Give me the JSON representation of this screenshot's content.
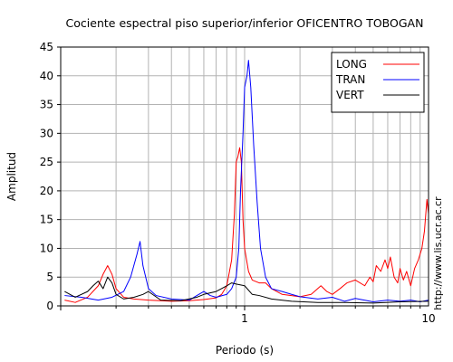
{
  "chart_data": {
    "type": "line",
    "title": "Cociente espectral piso superior/inferior OFICENTRO TOBOGAN",
    "xlabel": "Periodo (s)",
    "ylabel": "Amplitud",
    "x_scale": "log",
    "xlim": [
      0.1,
      10
    ],
    "ylim": [
      0,
      45
    ],
    "x_tick_labels": [
      {
        "value": 1,
        "label": "1"
      },
      {
        "value": 10,
        "label": "10"
      }
    ],
    "y_ticks": [
      0,
      5,
      10,
      15,
      20,
      25,
      30,
      35,
      40,
      45
    ],
    "grid": true,
    "legend_position": "top-right",
    "watermark": "http://www.lis.ucr.ac.cr",
    "series": [
      {
        "name": "LONG",
        "color": "#ff0000",
        "points": [
          [
            0.105,
            1.0
          ],
          [
            0.12,
            0.6
          ],
          [
            0.14,
            1.5
          ],
          [
            0.16,
            3.5
          ],
          [
            0.17,
            5.5
          ],
          [
            0.18,
            7.0
          ],
          [
            0.19,
            5.5
          ],
          [
            0.2,
            3.0
          ],
          [
            0.22,
            1.5
          ],
          [
            0.25,
            1.2
          ],
          [
            0.3,
            1.0
          ],
          [
            0.4,
            0.8
          ],
          [
            0.5,
            0.9
          ],
          [
            0.6,
            1.1
          ],
          [
            0.7,
            1.4
          ],
          [
            0.75,
            2.0
          ],
          [
            0.8,
            3.5
          ],
          [
            0.85,
            8.0
          ],
          [
            0.88,
            16.0
          ],
          [
            0.9,
            25.0
          ],
          [
            0.92,
            26.0
          ],
          [
            0.94,
            27.5
          ],
          [
            0.96,
            25.0
          ],
          [
            0.98,
            15.0
          ],
          [
            1.0,
            10.0
          ],
          [
            1.05,
            6.0
          ],
          [
            1.1,
            4.5
          ],
          [
            1.2,
            4.0
          ],
          [
            1.3,
            4.0
          ],
          [
            1.4,
            3.0
          ],
          [
            1.6,
            2.0
          ],
          [
            2.0,
            1.6
          ],
          [
            2.3,
            2.0
          ],
          [
            2.6,
            3.5
          ],
          [
            2.8,
            2.5
          ],
          [
            3.0,
            2.0
          ],
          [
            3.3,
            3.0
          ],
          [
            3.6,
            4.0
          ],
          [
            4.0,
            4.5
          ],
          [
            4.5,
            3.5
          ],
          [
            4.8,
            5.0
          ],
          [
            5.0,
            4.2
          ],
          [
            5.2,
            7.0
          ],
          [
            5.5,
            6.0
          ],
          [
            5.8,
            8.0
          ],
          [
            6.0,
            6.5
          ],
          [
            6.2,
            8.5
          ],
          [
            6.5,
            5.0
          ],
          [
            6.8,
            4.0
          ],
          [
            7.0,
            6.5
          ],
          [
            7.3,
            4.5
          ],
          [
            7.6,
            6.0
          ],
          [
            8.0,
            3.5
          ],
          [
            8.4,
            6.5
          ],
          [
            8.8,
            8.0
          ],
          [
            9.2,
            10.0
          ],
          [
            9.5,
            13.0
          ],
          [
            9.8,
            18.5
          ],
          [
            10.0,
            16.0
          ]
        ]
      },
      {
        "name": "TRAN",
        "color": "#0000ff",
        "points": [
          [
            0.105,
            1.8
          ],
          [
            0.13,
            1.5
          ],
          [
            0.16,
            1.0
          ],
          [
            0.19,
            1.5
          ],
          [
            0.22,
            2.5
          ],
          [
            0.24,
            5.0
          ],
          [
            0.26,
            9.0
          ],
          [
            0.27,
            11.2
          ],
          [
            0.28,
            7.0
          ],
          [
            0.3,
            3.0
          ],
          [
            0.33,
            1.8
          ],
          [
            0.4,
            1.2
          ],
          [
            0.5,
            1.0
          ],
          [
            0.55,
            1.8
          ],
          [
            0.6,
            2.5
          ],
          [
            0.65,
            1.8
          ],
          [
            0.7,
            1.5
          ],
          [
            0.8,
            2.0
          ],
          [
            0.85,
            3.0
          ],
          [
            0.9,
            5.0
          ],
          [
            0.93,
            10.0
          ],
          [
            0.95,
            20.0
          ],
          [
            0.98,
            30.0
          ],
          [
            1.0,
            38.0
          ],
          [
            1.03,
            40.0
          ],
          [
            1.05,
            42.7
          ],
          [
            1.08,
            38.0
          ],
          [
            1.12,
            28.0
          ],
          [
            1.17,
            18.0
          ],
          [
            1.22,
            10.0
          ],
          [
            1.3,
            5.0
          ],
          [
            1.4,
            3.0
          ],
          [
            1.6,
            2.5
          ],
          [
            1.8,
            2.0
          ],
          [
            2.0,
            1.6
          ],
          [
            2.5,
            1.2
          ],
          [
            3.0,
            1.5
          ],
          [
            3.5,
            0.8
          ],
          [
            4.0,
            1.3
          ],
          [
            5.0,
            0.7
          ],
          [
            6.0,
            1.0
          ],
          [
            7.0,
            0.8
          ],
          [
            8.0,
            1.0
          ],
          [
            9.0,
            0.7
          ],
          [
            10.0,
            1.0
          ]
        ]
      },
      {
        "name": "VERT",
        "color": "#000000",
        "points": [
          [
            0.105,
            2.5
          ],
          [
            0.12,
            1.5
          ],
          [
            0.14,
            2.5
          ],
          [
            0.15,
            3.5
          ],
          [
            0.16,
            4.3
          ],
          [
            0.17,
            3.0
          ],
          [
            0.18,
            5.0
          ],
          [
            0.19,
            4.0
          ],
          [
            0.2,
            2.0
          ],
          [
            0.22,
            1.2
          ],
          [
            0.25,
            1.5
          ],
          [
            0.28,
            2.0
          ],
          [
            0.3,
            2.5
          ],
          [
            0.35,
            1.0
          ],
          [
            0.45,
            0.9
          ],
          [
            0.55,
            1.5
          ],
          [
            0.6,
            2.0
          ],
          [
            0.7,
            2.5
          ],
          [
            0.8,
            3.5
          ],
          [
            0.85,
            4.0
          ],
          [
            0.9,
            3.8
          ],
          [
            1.0,
            3.5
          ],
          [
            1.1,
            2.0
          ],
          [
            1.2,
            1.8
          ],
          [
            1.4,
            1.2
          ],
          [
            1.8,
            0.8
          ],
          [
            2.5,
            0.6
          ],
          [
            3.5,
            0.6
          ],
          [
            5.0,
            0.5
          ],
          [
            7.0,
            0.7
          ],
          [
            10.0,
            0.8
          ]
        ]
      }
    ]
  }
}
